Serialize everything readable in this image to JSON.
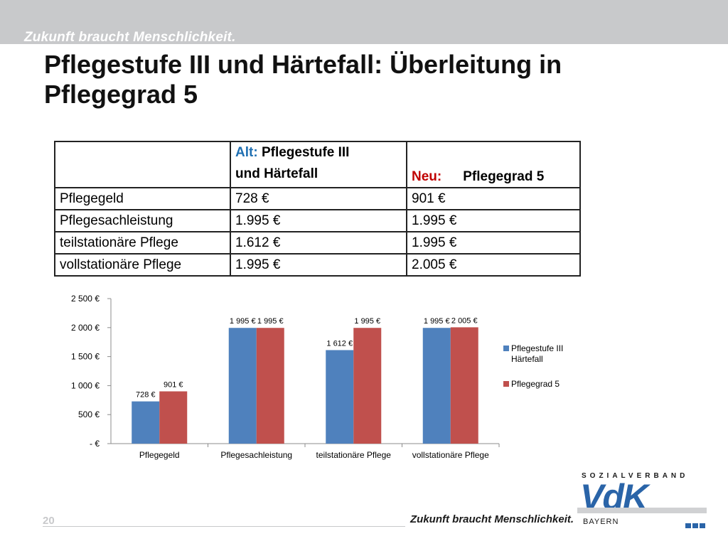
{
  "header": {
    "slogan": "Zukunft braucht Menschlichkeit.",
    "title": "Pflegestufe III und Härtefall: Überleitung in Pflegegrad 5"
  },
  "table": {
    "header_alt_keyword": "Alt:",
    "header_alt_line1": "Pflegestufe III",
    "header_alt_line2": "und Härtefall",
    "header_neu_keyword": "Neu:",
    "header_neu_text": "Pflegegrad 5",
    "rows": [
      {
        "label": "Pflegegeld",
        "alt": "728 €",
        "neu": "901 €"
      },
      {
        "label": "Pflegesachleistung",
        "alt": "1.995 €",
        "neu": "1.995 €"
      },
      {
        "label": "teilstationäre Pflege",
        "alt": "1.612 €",
        "neu": "1.995 €"
      },
      {
        "label": "vollstationäre Pflege",
        "alt": "1.995 €",
        "neu": "2.005 €"
      }
    ]
  },
  "chart_data": {
    "type": "bar",
    "categories": [
      "Pflegegeld",
      "Pflegesachleistung",
      "teilstationäre Pflege",
      "vollstationäre Pflege"
    ],
    "series": [
      {
        "name": "Pflegestufe III Härtefall",
        "values": [
          728,
          1995,
          1612,
          1995
        ],
        "labels": [
          "728 €",
          "1 995 €",
          "1 612 €",
          "1 995 €"
        ],
        "color": "#4f81bd"
      },
      {
        "name": "Pflegegrad 5",
        "values": [
          901,
          1995,
          1995,
          2005
        ],
        "labels": [
          "901 €",
          "1 995 €",
          "1 995 €",
          "2 005 €"
        ],
        "color": "#c0504d"
      }
    ],
    "legend_lines": [
      [
        "Pflegestufe III",
        "Härtefall"
      ],
      [
        "Pflegegrad 5"
      ]
    ],
    "ylim": [
      0,
      2500
    ],
    "yticks": [
      0,
      500,
      1000,
      1500,
      2000,
      2500
    ],
    "ytick_labels": [
      "-   €",
      "500 €",
      "1 000 €",
      "1 500 €",
      "2 000 €",
      "2 500 €"
    ],
    "legend_position": "right",
    "grid": false,
    "title": "",
    "xlabel": "",
    "ylabel": ""
  },
  "footer": {
    "page_number": "20",
    "slogan": "Zukunft braucht Menschlichkeit.",
    "logo_top": "SOZIALVERBAND",
    "logo_main": "VdK",
    "logo_sub": "BAYERN"
  }
}
